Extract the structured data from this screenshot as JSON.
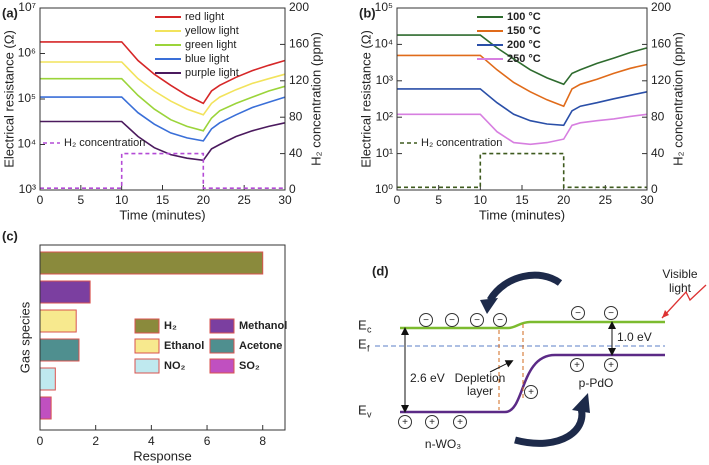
{
  "chart_data": [
    {
      "type": "line",
      "title": "(a)",
      "xlabel": "Time (minutes)",
      "ylabel": "Electrical resistance (Ω)",
      "y2label": "H₂ concentration (ppm)",
      "x": [
        0,
        10,
        12,
        14,
        16,
        18,
        20,
        21,
        22,
        24,
        26,
        28,
        30
      ],
      "xlim": [
        0,
        30
      ],
      "xticks": [
        0,
        5,
        10,
        15,
        20,
        25,
        30
      ],
      "ylog": true,
      "ylim": [
        1000,
        10000000
      ],
      "yticks": [
        {
          "value": 1000,
          "label": "10³"
        },
        {
          "value": 10000,
          "label": "10⁴"
        },
        {
          "value": 100000,
          "label": "10⁵"
        },
        {
          "value": 1000000,
          "label": "10⁶"
        },
        {
          "value": 10000000,
          "label": "10⁷"
        }
      ],
      "y2lim": [
        0,
        200
      ],
      "y2ticks": [
        0,
        40,
        80,
        120,
        160,
        200
      ],
      "legend": "upper right",
      "series": [
        {
          "name": "red light",
          "color": "#d62728",
          "values": [
            1800000,
            1800000,
            700000,
            350000,
            200000,
            120000,
            80000,
            150000,
            200000,
            300000,
            420000,
            550000,
            700000
          ]
        },
        {
          "name": "yellow light",
          "color": "#f2e35c",
          "values": [
            650000,
            650000,
            280000,
            150000,
            90000,
            60000,
            45000,
            80000,
            110000,
            160000,
            220000,
            280000,
            350000
          ]
        },
        {
          "name": "green light",
          "color": "#9bd43a",
          "values": [
            280000,
            280000,
            120000,
            60000,
            35000,
            25000,
            20000,
            38000,
            55000,
            80000,
            110000,
            150000,
            190000
          ]
        },
        {
          "name": "blue light",
          "color": "#3a6fd8",
          "values": [
            110000,
            110000,
            50000,
            28000,
            18000,
            14000,
            12000,
            22000,
            30000,
            45000,
            65000,
            85000,
            110000
          ]
        },
        {
          "name": "purple light",
          "color": "#4b1a5e",
          "values": [
            32000,
            32000,
            15000,
            8500,
            6000,
            5000,
            4500,
            8000,
            10000,
            15000,
            20000,
            25000,
            30000
          ]
        },
        {
          "name": "H₂ concentration",
          "color": "#b44bd6",
          "dash": true,
          "axis": "y2",
          "x": [
            0,
            10,
            10,
            20,
            20,
            30
          ],
          "values": [
            2,
            2,
            40,
            40,
            2,
            2
          ]
        }
      ]
    },
    {
      "type": "line",
      "title": "(b)",
      "xlabel": "Time (minutes)",
      "ylabel": "Electrical resistance (Ω)",
      "y2label": "H₂ concentration (ppm)",
      "x": [
        0,
        10,
        12,
        14,
        16,
        18,
        20,
        21,
        22,
        24,
        26,
        28,
        30
      ],
      "xlim": [
        0,
        30
      ],
      "xticks": [
        0,
        5,
        10,
        15,
        20,
        25,
        30
      ],
      "ylog": true,
      "ylim": [
        1,
        100000
      ],
      "yticks": [
        {
          "value": 1,
          "label": "10⁰"
        },
        {
          "value": 10,
          "label": "10¹"
        },
        {
          "value": 100,
          "label": "10²"
        },
        {
          "value": 1000,
          "label": "10³"
        },
        {
          "value": 10000,
          "label": "10⁴"
        },
        {
          "value": 100000,
          "label": "10⁵"
        }
      ],
      "y2lim": [
        0,
        200
      ],
      "y2ticks": [
        0,
        40,
        80,
        120,
        160,
        200
      ],
      "legend": "upper center",
      "series": [
        {
          "name": "100 °C",
          "color": "#2e6b2e",
          "values": [
            18000,
            18000,
            8000,
            4000,
            2000,
            1200,
            800,
            1600,
            2000,
            3000,
            4200,
            6000,
            8000
          ]
        },
        {
          "name": "150 °C",
          "color": "#e06b1a",
          "values": [
            5000,
            5000,
            2000,
            900,
            500,
            300,
            200,
            600,
            800,
            1100,
            1600,
            2200,
            2800
          ]
        },
        {
          "name": "200 °C",
          "color": "#2a4fa8",
          "values": [
            600,
            600,
            250,
            120,
            80,
            65,
            60,
            150,
            200,
            250,
            320,
            400,
            500
          ]
        },
        {
          "name": "250 °C",
          "color": "#d77fe0",
          "values": [
            120,
            120,
            40,
            20,
            18,
            20,
            25,
            60,
            70,
            80,
            90,
            105,
            120
          ]
        },
        {
          "name": "H₂ concentration",
          "color": "#3e5a1e",
          "dash": true,
          "axis": "y2",
          "x": [
            0,
            10,
            10,
            20,
            20,
            30
          ],
          "values": [
            3,
            3,
            40,
            40,
            3,
            3
          ]
        }
      ]
    },
    {
      "type": "barh",
      "title": "(c)",
      "xlabel": "Response",
      "ylabel": "Gas species",
      "categories": [
        "H₂",
        "Methanol",
        "Ethanol",
        "Acetone",
        "NO₂",
        "SO₂"
      ],
      "values": [
        8,
        1.8,
        1.3,
        1.4,
        0.55,
        0.4
      ],
      "colors": [
        "#8a8a3c",
        "#7b3fa0",
        "#f7e98e",
        "#4f8f8f",
        "#bfe9ef",
        "#c050c0"
      ],
      "xlim": [
        0,
        8.8
      ],
      "xticks": [
        0,
        2,
        4,
        6,
        8
      ],
      "legend": "center right"
    }
  ],
  "diagram": {
    "label": "(d)",
    "light": [
      "Visible",
      "light"
    ],
    "E": "E",
    "subs": [
      "c",
      "f",
      "v"
    ],
    "gap_left": "2.6 eV",
    "gap_right": "1.0 eV",
    "depletion": [
      "Depletion",
      "layer"
    ],
    "p_side": "p-PdO",
    "n_side": "n-WO₃",
    "minus": "−",
    "plus": "+"
  }
}
